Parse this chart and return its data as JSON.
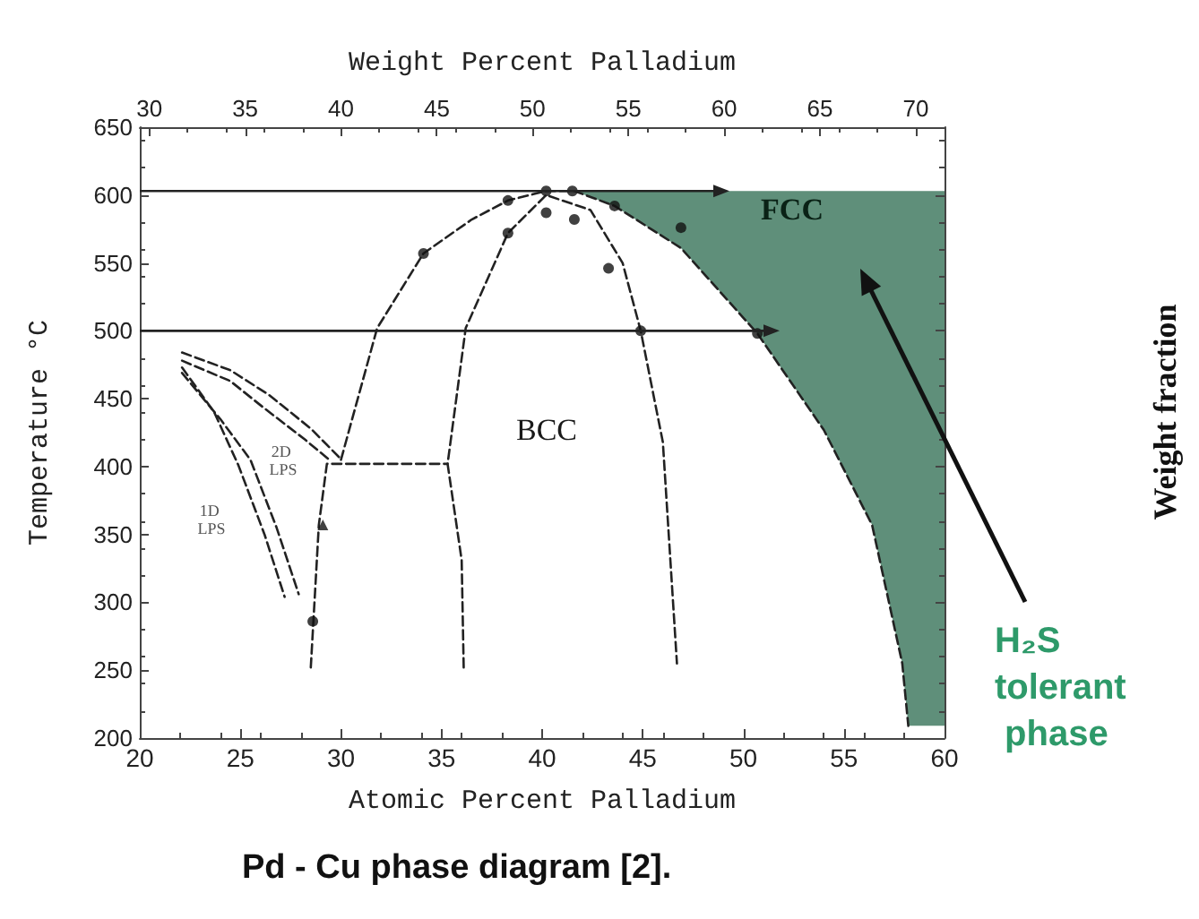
{
  "chart_data": {
    "type": "line",
    "title": "Pd - Cu phase diagram [2].",
    "xlabel": "Atomic Percent Palladium",
    "ylabel": "Temperature °C",
    "x2label": "Weight Percent Palladium",
    "xlim": [
      20,
      60
    ],
    "xticks": [
      20,
      25,
      30,
      35,
      40,
      45,
      50,
      55,
      60
    ],
    "ylim": [
      200,
      650
    ],
    "yticks": [
      200,
      250,
      300,
      350,
      400,
      450,
      500,
      550,
      600,
      650
    ],
    "x2lim": [
      29.5,
      71.5
    ],
    "x2ticks": [
      30,
      35,
      40,
      45,
      50,
      55,
      60,
      65,
      70
    ],
    "grid": false,
    "series": [
      {
        "color": "#222222",
        "line_style": "dashed",
        "marker": "none",
        "x": [
          30.0,
          31.8,
          34.1,
          36.5,
          38.3,
          40.2,
          41.6,
          43.6,
          46.9,
          50.7,
          54.0,
          56.4,
          57.9,
          58.2
        ],
        "values": [
          405,
          502,
          557,
          582,
          596,
          603,
          603,
          592,
          561,
          498,
          427,
          357,
          255,
          209
        ]
      },
      {
        "color": "#222222",
        "line_style": "dashed",
        "marker": "none",
        "x": [
          36.1,
          36.0,
          35.3,
          36.2,
          38.3,
          40.2,
          42.4,
          44.0,
          44.9,
          46.0,
          46.7
        ],
        "values": [
          252,
          331,
          402,
          502,
          572,
          600,
          589,
          550,
          500,
          418,
          255
        ]
      },
      {
        "color": "#222222",
        "line_style": "dashed",
        "marker": "none",
        "x": [
          28.5,
          28.9,
          29.3,
          35.3
        ],
        "values": [
          252,
          357,
          402,
          402
        ]
      },
      {
        "color": "#222222",
        "line_style": "dashed",
        "marker": "none",
        "x": [
          22.1,
          24.5,
          26.4,
          28.5,
          29.9
        ],
        "values": [
          484,
          471,
          453,
          428,
          407
        ]
      },
      {
        "color": "#222222",
        "line_style": "dashed",
        "marker": "none",
        "x": [
          22.1,
          24.5,
          26.1,
          28.2,
          29.5
        ],
        "values": [
          478,
          463,
          444,
          420,
          404
        ]
      },
      {
        "color": "#222222",
        "line_style": "dashed",
        "marker": "none",
        "x": [
          22.1,
          23.7,
          24.9,
          26.2,
          27.2
        ],
        "values": [
          473,
          440,
          401,
          350,
          304
        ]
      },
      {
        "color": "#222222",
        "line_style": "dashed",
        "marker": "none",
        "x": [
          22.1,
          24.0,
          25.5,
          26.8,
          27.9
        ],
        "values": [
          469,
          435,
          405,
          355,
          306
        ]
      },
      {
        "type": "scatter",
        "color": "#111111",
        "marker": "circle",
        "x": [
          34.1,
          38.3,
          38.3,
          40.2,
          40.2,
          41.5,
          41.6,
          43.6,
          43.3,
          46.9,
          44.9,
          50.7,
          28.6
        ],
        "values": [
          557,
          596,
          572,
          603,
          587,
          603,
          582,
          592,
          546,
          576,
          500,
          498,
          286
        ]
      },
      {
        "type": "scatter",
        "color": "#111111",
        "marker": "triangle",
        "x": [
          29.1
        ],
        "values": [
          357
        ]
      }
    ],
    "ref_lines": [
      {
        "axis": "y",
        "value": 603,
        "color": "#222222"
      },
      {
        "axis": "y",
        "value": 500,
        "color": "#222222"
      }
    ],
    "annotations": [
      "FCC",
      "BCC",
      "2D LPS",
      "1D LPS",
      "H₂S tolerant phase",
      "Weight fraction"
    ]
  }
}
